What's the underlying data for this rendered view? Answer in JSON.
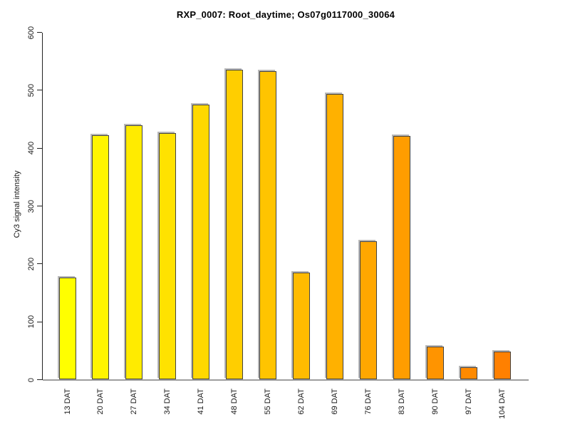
{
  "chart_data": {
    "type": "bar",
    "title": "RXP_0007: Root_daytime; Os07g0117000_30064",
    "xlabel": "",
    "ylabel": "Cy3 signal intensity",
    "categories": [
      "13 DAT",
      "20 DAT",
      "27 DAT",
      "34 DAT",
      "41 DAT",
      "48 DAT",
      "55 DAT",
      "62 DAT",
      "69 DAT",
      "76 DAT",
      "83 DAT",
      "90 DAT",
      "97 DAT",
      "104 DAT"
    ],
    "values": [
      176,
      422,
      439,
      426,
      475,
      535,
      533,
      185,
      494,
      239,
      421,
      57,
      22,
      48
    ],
    "ylim": [
      0,
      600
    ],
    "yticks": [
      0,
      100,
      200,
      300,
      400,
      500,
      600
    ],
    "grid": false,
    "legend_position": "none",
    "bar_colors": [
      "#FFFF00",
      "#FFF500",
      "#FFEB00",
      "#FFE200",
      "#FFD800",
      "#FFCE00",
      "#FFC400",
      "#FFBB00",
      "#FFB100",
      "#FFA700",
      "#FF9D00",
      "#FF9400",
      "#FF8A00",
      "#FF8000"
    ],
    "bar_border_color": "#444444",
    "bar_shadow_color": "#b8b8b8",
    "axis_color": "#222222",
    "baseline_color": "#9e9e9e",
    "text_color": "#1a1a1a",
    "background_color": "#ffffff"
  }
}
